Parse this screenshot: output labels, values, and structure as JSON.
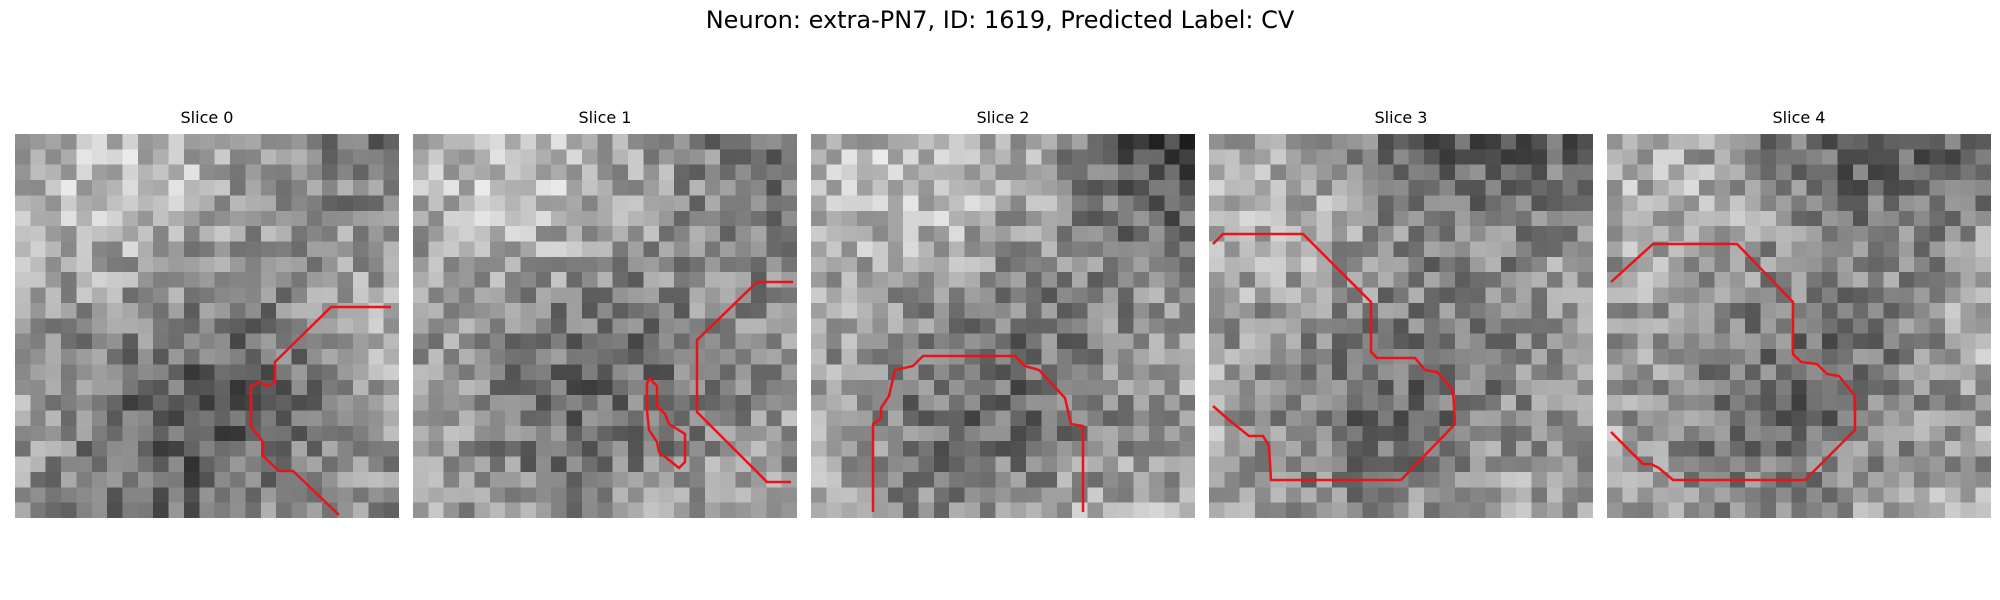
{
  "figure": {
    "title": "Neuron: extra-PN7, ID: 1619, Predicted Label: CV"
  },
  "panels": [
    {
      "title": "Slice 0"
    },
    {
      "title": "Slice 1"
    },
    {
      "title": "Slice 2"
    },
    {
      "title": "Slice 3"
    },
    {
      "title": "Slice 4"
    }
  ],
  "colors": {
    "contour": "#e8141a",
    "background": "#ffffff"
  }
}
